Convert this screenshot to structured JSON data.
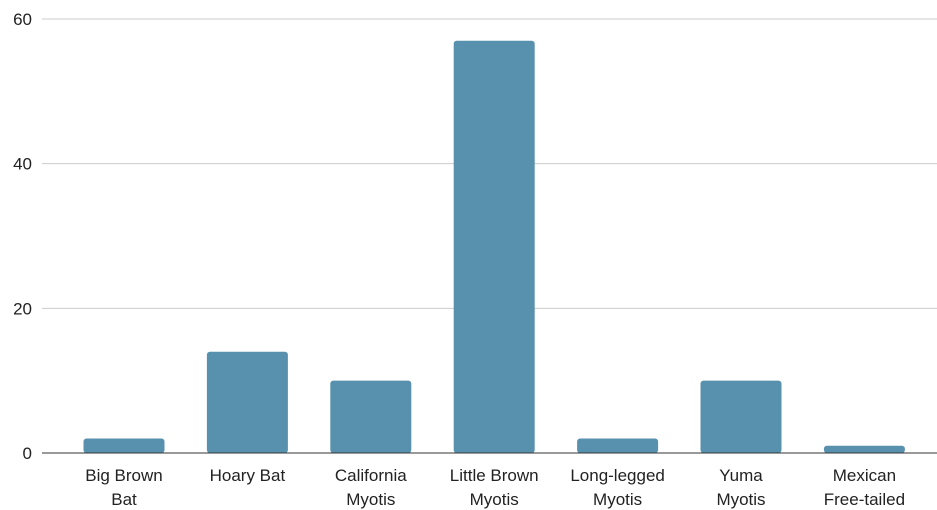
{
  "chart_data": {
    "type": "bar",
    "categories": [
      [
        "Big Brown",
        "Bat"
      ],
      [
        "Hoary Bat"
      ],
      [
        "California",
        "Myotis"
      ],
      [
        "Little Brown",
        "Myotis"
      ],
      [
        "Long-legged",
        "Myotis"
      ],
      [
        "Yuma",
        "Myotis"
      ],
      [
        "Mexican",
        "Free-tailed"
      ]
    ],
    "values": [
      2,
      14,
      10,
      57,
      2,
      10,
      1
    ],
    "ylim": [
      0,
      60
    ],
    "yticks": [
      0,
      20,
      40,
      60
    ],
    "grid": true,
    "legend": "none",
    "bar_color": "#5891ad",
    "title": "",
    "xlabel": "",
    "ylabel": ""
  }
}
